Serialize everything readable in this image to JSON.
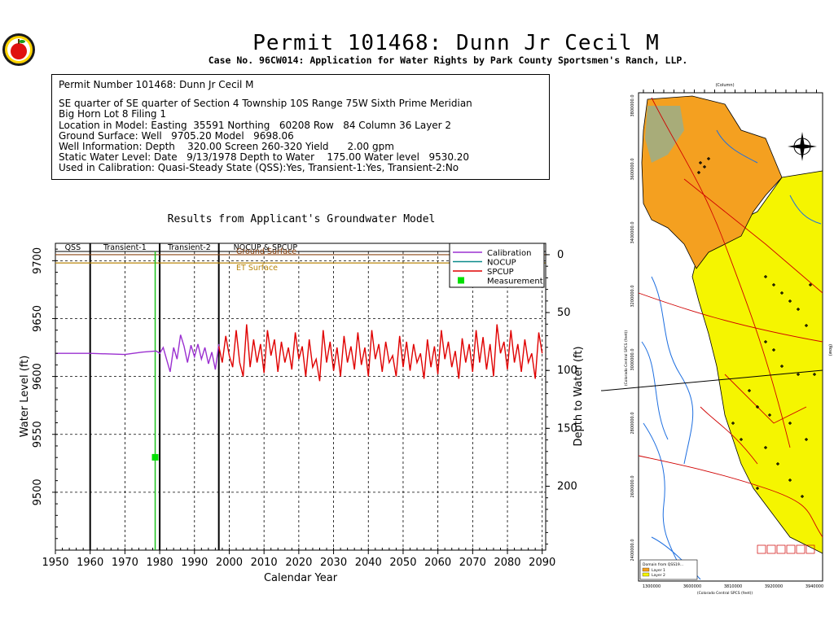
{
  "header": {
    "title": "Permit 101468:  Dunn Jr Cecil M",
    "subtitle": "Case No. 96CW014: Application for Water Rights by Park County Sportsmen's Ranch, LLP."
  },
  "info": {
    "lines": [
      "Permit Number 101468: Dunn Jr Cecil M",
      "",
      "SE quarter of SE quarter of Section 4 Township 10S Range 75W Sixth Prime Meridian",
      "Big Horn Lot 8 Filing 1",
      "Location in Model: Easting  35591 Northing   60208 Row   84 Column 36 Layer 2",
      "Ground Surface: Well   9705.20 Model   9698.06",
      "Well Information: Depth    320.00 Screen 260-320 Yield      2.00 gpm",
      "Static Water Level: Date   9/13/1978 Depth to Water    175.00 Water level   9530.20",
      "Used in Calibration: Quasi-Steady State (QSS):Yes, Transient-1:Yes, Transient-2:No"
    ]
  },
  "chart_data": {
    "type": "line",
    "title": "Results from Applicant's Groundwater Model",
    "xlabel": "Calendar Year",
    "ylabel": "Water Level (ft)",
    "y2label": "Depth to Water (ft)",
    "xlim": [
      1950,
      2091
    ],
    "ylim": [
      9450,
      9715
    ],
    "xticks": [
      1950,
      1960,
      1970,
      1980,
      1990,
      2000,
      2010,
      2020,
      2030,
      2040,
      2050,
      2060,
      2070,
      2080,
      2090
    ],
    "yticks": [
      9500,
      9550,
      9600,
      9650,
      9700
    ],
    "y2ticks": [
      0,
      50,
      100,
      150,
      200
    ],
    "ground_surface": 9705.2,
    "periods": [
      {
        "label": "QSS",
        "start": 1950,
        "end": 1960
      },
      {
        "label": "Transient-1",
        "start": 1960,
        "end": 1980
      },
      {
        "label": "Transient-2",
        "start": 1980,
        "end": 1997
      },
      {
        "label": "NOCUP & SPCUP",
        "start": 1997,
        "end": 2091
      }
    ],
    "reference_lines": [
      {
        "label": "Ground Surface",
        "value": 9705.2,
        "color": "#8B4513"
      },
      {
        "label": "ET Surface",
        "value": 9698.06,
        "color": "#B8860B"
      }
    ],
    "legend": [
      "Calibration",
      "NOCUP",
      "SPCUP",
      "Measurement"
    ],
    "legend_position": "top-right",
    "grid": true,
    "series": [
      {
        "name": "Calibration",
        "color": "#9b30d0",
        "x": [
          1950,
          1960,
          1970,
          1975,
          1979,
          1980,
          1981,
          1983,
          1984,
          1985,
          1986,
          1987,
          1988,
          1989,
          1990,
          1991,
          1992,
          1993,
          1994,
          1995,
          1996,
          1997
        ],
        "y": [
          9620,
          9620,
          9619,
          9621,
          9622,
          9620,
          9625,
          9604,
          9625,
          9615,
          9636,
          9626,
          9612,
          9627,
          9617,
          9628,
          9615,
          9625,
          9611,
          9621,
          9606,
          9628
        ]
      },
      {
        "name": "NOCUP",
        "color": "#0a8a8a",
        "x": [
          1997,
          2090
        ],
        "y": [
          9628,
          9628
        ]
      },
      {
        "name": "SPCUP",
        "color": "#e00000",
        "x": [
          1997,
          1998,
          1999,
          2000,
          2001,
          2002,
          2003,
          2004,
          2005,
          2006,
          2007,
          2008,
          2009,
          2010,
          2011,
          2012,
          2013,
          2014,
          2015,
          2016,
          2017,
          2018,
          2019,
          2020,
          2021,
          2022,
          2023,
          2024,
          2025,
          2026,
          2027,
          2028,
          2029,
          2030,
          2031,
          2032,
          2033,
          2034,
          2035,
          2036,
          2037,
          2038,
          2039,
          2040,
          2041,
          2042,
          2043,
          2044,
          2045,
          2046,
          2047,
          2048,
          2049,
          2050,
          2051,
          2052,
          2053,
          2054,
          2055,
          2056,
          2057,
          2058,
          2059,
          2060,
          2061,
          2062,
          2063,
          2064,
          2065,
          2066,
          2067,
          2068,
          2069,
          2070,
          2071,
          2072,
          2073,
          2074,
          2075,
          2076,
          2077,
          2078,
          2079,
          2080,
          2081,
          2082,
          2083,
          2084,
          2085,
          2086,
          2087,
          2088,
          2089,
          2090
        ],
        "y": [
          9626,
          9612,
          9635,
          9618,
          9608,
          9640,
          9612,
          9600,
          9645,
          9608,
          9632,
          9612,
          9628,
          9603,
          9640,
          9618,
          9632,
          9604,
          9630,
          9612,
          9625,
          9606,
          9638,
          9615,
          9626,
          9600,
          9632,
          9608,
          9615,
          9596,
          9640,
          9612,
          9630,
          9605,
          9625,
          9600,
          9635,
          9612,
          9626,
          9606,
          9638,
          9610,
          9625,
          9600,
          9640,
          9615,
          9628,
          9604,
          9630,
          9612,
          9618,
          9600,
          9635,
          9608,
          9630,
          9605,
          9628,
          9612,
          9620,
          9598,
          9632,
          9608,
          9626,
          9602,
          9640,
          9615,
          9630,
          9608,
          9622,
          9598,
          9633,
          9612,
          9628,
          9604,
          9640,
          9612,
          9634,
          9606,
          9628,
          9600,
          9645,
          9620,
          9630,
          9606,
          9640,
          9612,
          9628,
          9604,
          9632,
          9612,
          9620,
          9598,
          9638,
          9620
        ]
      }
    ],
    "measurements": [
      {
        "x": 1978.7,
        "y": 9530.2
      }
    ]
  },
  "map": {
    "top_axis_label": "(Column)",
    "left_axis_label": "(Colorado Central SPCS (feet))",
    "right_axis_label": "(Row)",
    "bottom_axis_label": "(Colorado Central SPCS (feet))",
    "left_ticks": [
      "3800000.0",
      "3600000.0",
      "3400000.0",
      "3200000.0",
      "3000000.0",
      "2800000.0",
      "2600000.0",
      "2400000.0"
    ],
    "bottom_ticks": [
      "1300000",
      "3600000",
      "3810000",
      "3920000",
      "3940000"
    ],
    "legend_title": "Domain from QSS19...",
    "legend_items": [
      {
        "label": "Layer 1",
        "color": "#f4a020"
      },
      {
        "label": "Layer 2",
        "color": "#f5f500"
      }
    ],
    "colors": {
      "layer1": "#f4a020",
      "layer2": "#f5f500",
      "roads": "#d00000",
      "streams": "#1e6fe0"
    }
  }
}
